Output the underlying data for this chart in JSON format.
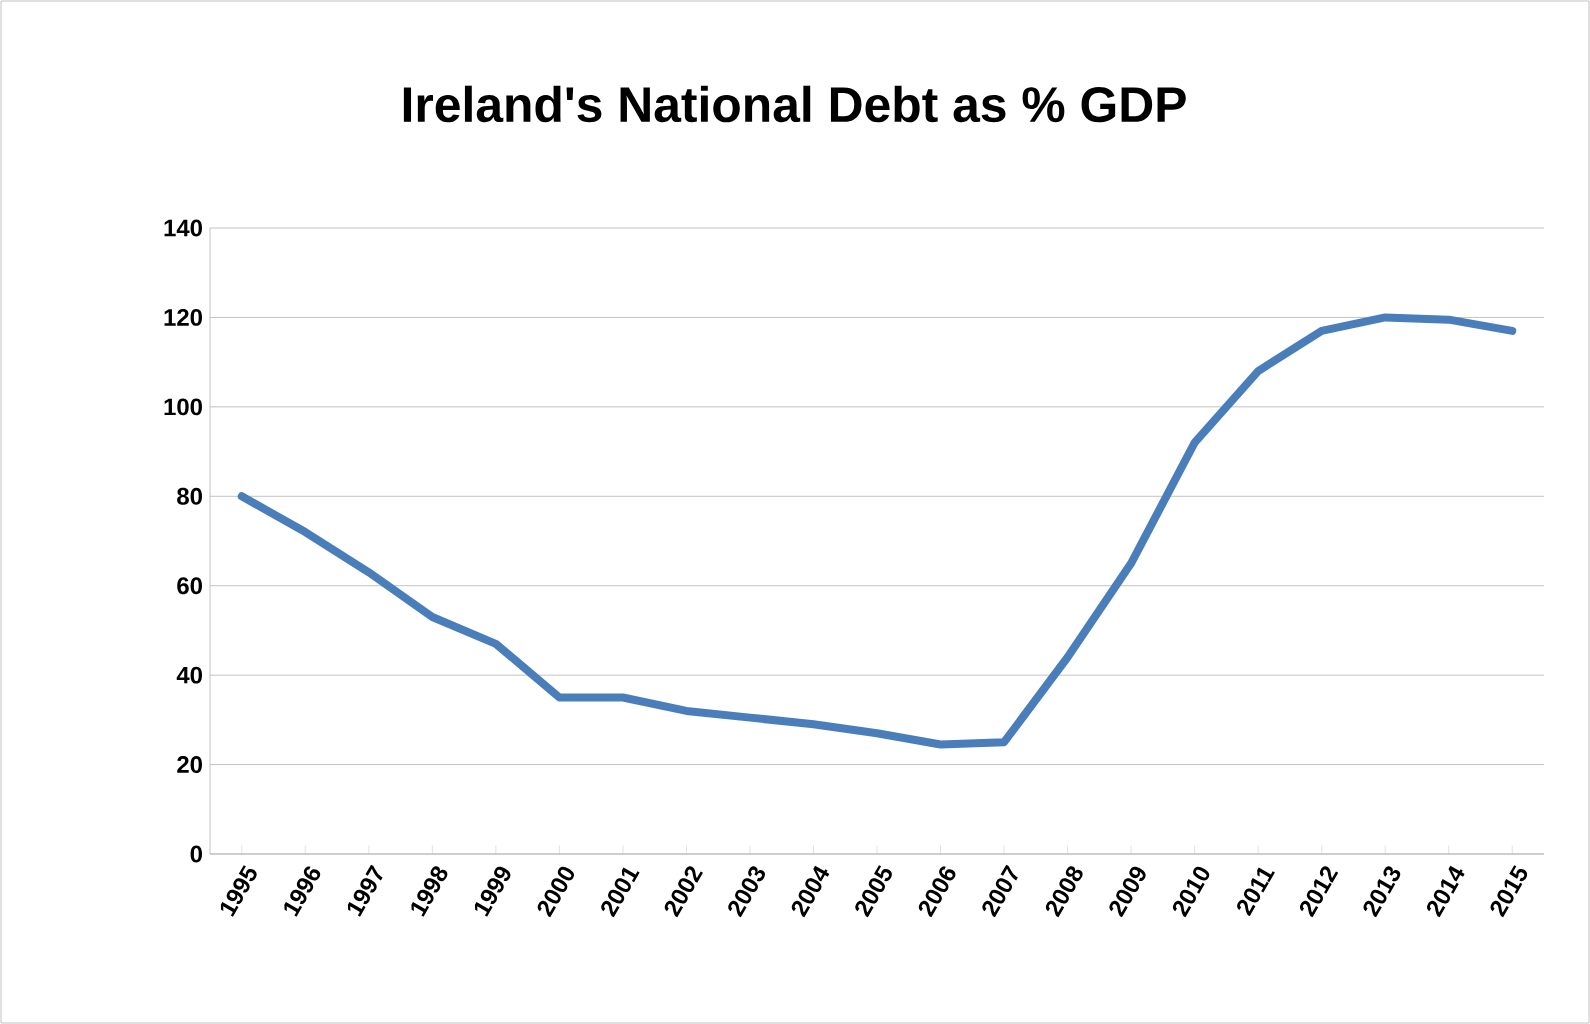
{
  "chart_data": {
    "type": "line",
    "title": "Ireland's National Debt as % GDP",
    "categories": [
      "1995",
      "1996",
      "1997",
      "1998",
      "1999",
      "2000",
      "2001",
      "2002",
      "2003",
      "2004",
      "2005",
      "2006",
      "2007",
      "2008",
      "2009",
      "2010",
      "2011",
      "2012",
      "2013",
      "2014",
      "2015"
    ],
    "series": [
      {
        "color": "#4a7ebb",
        "values": [
          80,
          72,
          63,
          53,
          47,
          35,
          35,
          32,
          30.5,
          29,
          27,
          24.5,
          25,
          44,
          65,
          92,
          108,
          117,
          120,
          119.5,
          117
        ]
      }
    ],
    "ylim": [
      0,
      140
    ],
    "yticks": [
      0,
      20,
      40,
      60,
      80,
      100,
      120,
      140
    ],
    "grid": "y",
    "marker": "none",
    "line_style": "solid"
  }
}
